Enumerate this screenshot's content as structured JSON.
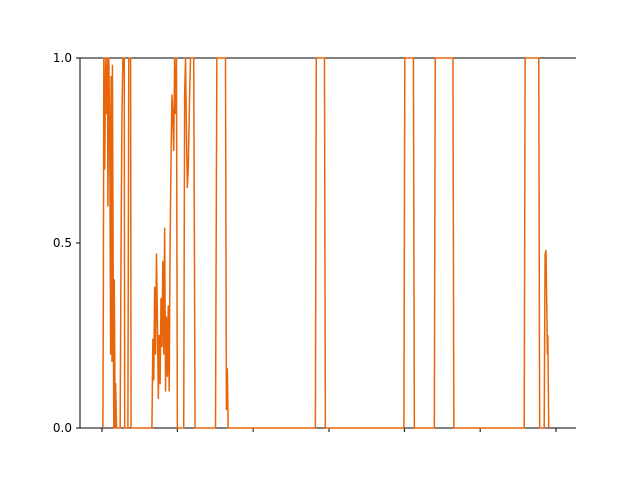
{
  "chart_data": {
    "type": "line",
    "title": "",
    "xlabel": "",
    "ylabel": "",
    "xlim": [
      0,
      1
    ],
    "ylim": [
      0,
      1
    ],
    "y_ticks": [
      {
        "value": 0.0,
        "label": "0.0"
      },
      {
        "value": 0.5,
        "label": "0.5"
      },
      {
        "value": 1.0,
        "label": "1.0"
      }
    ],
    "x_ticks": [
      0.0,
      0.166,
      0.333,
      0.5,
      0.666,
      0.833,
      1.0
    ],
    "x_tick_labels_shown": false,
    "grid": false,
    "axes": {
      "left": true,
      "top": true,
      "bottom": true,
      "right": false
    },
    "series": [
      {
        "color": "#e8650a",
        "points": [
          [
            0.002,
            0
          ],
          [
            0.003,
            0.38
          ],
          [
            0.004,
            1.0
          ],
          [
            0.006,
            0.7
          ],
          [
            0.008,
            1.0
          ],
          [
            0.01,
            0.85
          ],
          [
            0.012,
            1.0
          ],
          [
            0.013,
            0.6
          ],
          [
            0.015,
            1.0
          ],
          [
            0.017,
            0.8
          ],
          [
            0.019,
            0.2
          ],
          [
            0.02,
            0.95
          ],
          [
            0.022,
            0.18
          ],
          [
            0.023,
            0.98
          ],
          [
            0.025,
            0.3
          ],
          [
            0.026,
            0.0
          ],
          [
            0.027,
            0.4
          ],
          [
            0.029,
            0.0
          ],
          [
            0.03,
            0.12
          ],
          [
            0.032,
            0.0
          ],
          [
            0.04,
            0.0
          ],
          [
            0.042,
            0.5
          ],
          [
            0.044,
            0.85
          ],
          [
            0.046,
            1.0
          ],
          [
            0.049,
            1.0
          ],
          [
            0.05,
            0.0
          ],
          [
            0.057,
            0.0
          ],
          [
            0.059,
            1.0
          ],
          [
            0.063,
            1.0
          ],
          [
            0.064,
            0.0
          ],
          [
            0.11,
            0.0
          ],
          [
            0.112,
            0.24
          ],
          [
            0.114,
            0.13
          ],
          [
            0.116,
            0.38
          ],
          [
            0.118,
            0.2
          ],
          [
            0.12,
            0.47
          ],
          [
            0.122,
            0.3
          ],
          [
            0.124,
            0.08
          ],
          [
            0.126,
            0.25
          ],
          [
            0.128,
            0.12
          ],
          [
            0.13,
            0.35
          ],
          [
            0.132,
            0.22
          ],
          [
            0.134,
            0.45
          ],
          [
            0.136,
            0.2
          ],
          [
            0.138,
            0.54
          ],
          [
            0.14,
            0.1
          ],
          [
            0.142,
            0.3
          ],
          [
            0.144,
            0.14
          ],
          [
            0.146,
            0.33
          ],
          [
            0.148,
            0.1
          ],
          [
            0.15,
            0.5
          ],
          [
            0.152,
            0.72
          ],
          [
            0.154,
            0.9
          ],
          [
            0.156,
            0.85
          ],
          [
            0.158,
            0.75
          ],
          [
            0.16,
            1.0
          ],
          [
            0.162,
            0.85
          ],
          [
            0.164,
            1.0
          ],
          [
            0.166,
            0.0
          ],
          [
            0.18,
            0.0
          ],
          [
            0.182,
            0.9
          ],
          [
            0.184,
            1.0
          ],
          [
            0.186,
            0.8
          ],
          [
            0.188,
            0.65
          ],
          [
            0.19,
            0.7
          ],
          [
            0.193,
            0.9
          ],
          [
            0.195,
            1.0
          ],
          [
            0.202,
            1.0
          ],
          [
            0.205,
            0.0
          ],
          [
            0.25,
            0.0
          ],
          [
            0.253,
            1.0
          ],
          [
            0.272,
            1.0
          ],
          [
            0.274,
            0.05
          ],
          [
            0.276,
            0.16
          ],
          [
            0.278,
            0.0
          ],
          [
            0.47,
            0.0
          ],
          [
            0.472,
            1.0
          ],
          [
            0.49,
            1.0
          ],
          [
            0.492,
            0.0
          ],
          [
            0.665,
            0.0
          ],
          [
            0.667,
            1.0
          ],
          [
            0.686,
            1.0
          ],
          [
            0.688,
            0.0
          ],
          [
            0.732,
            0.0
          ],
          [
            0.734,
            1.0
          ],
          [
            0.773,
            1.0
          ],
          [
            0.775,
            0.0
          ],
          [
            0.93,
            0.0
          ],
          [
            0.932,
            1.0
          ],
          [
            0.962,
            1.0
          ],
          [
            0.964,
            0.0
          ],
          [
            0.974,
            0.0
          ],
          [
            0.976,
            0.47
          ],
          [
            0.978,
            0.48
          ],
          [
            0.98,
            0.3
          ],
          [
            0.981,
            0.2
          ],
          [
            0.982,
            0.25
          ],
          [
            0.984,
            0.0
          ]
        ]
      }
    ]
  }
}
